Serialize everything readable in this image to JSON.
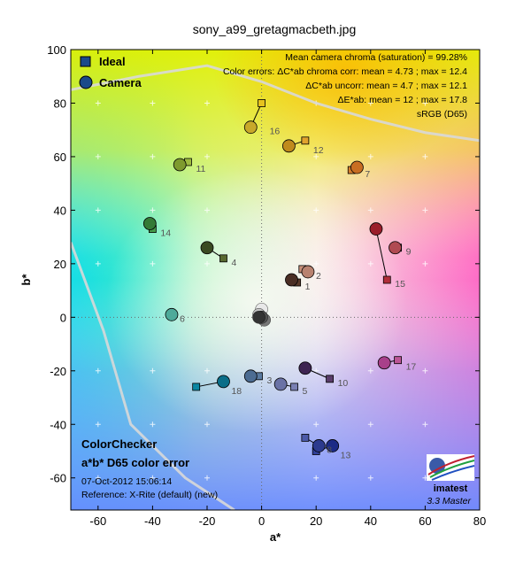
{
  "chart_data": {
    "type": "scatter",
    "title": "sony_a99_gretagmacbeth.jpg",
    "xlabel": "a*",
    "ylabel": "b*",
    "xlim": [
      -70,
      80
    ],
    "ylim": [
      -72,
      100
    ],
    "xticks": [
      -60,
      -40,
      -20,
      0,
      20,
      40,
      60,
      80
    ],
    "yticks": [
      -60,
      -40,
      -20,
      0,
      20,
      40,
      60,
      80,
      100
    ],
    "grid": "dotted center axes with cross markers",
    "legend": {
      "position": "top-left",
      "entries": [
        {
          "label": "Ideal",
          "marker": "square"
        },
        {
          "label": "Camera",
          "marker": "circle"
        }
      ]
    },
    "stats_lines": [
      "Mean camera chroma (saturation) = 99.28%",
      "Color errors: ΔC*ab chroma corr:  mean = 4.73 ;  max = 12.4",
      "ΔC*ab uncorr:  mean = 4.7 ;  max = 12.1",
      "ΔE*ab:  mean = 12 ;  max = 17.8",
      "sRGB (D65)"
    ],
    "info_title_lines": [
      "ColorChecker",
      "a*b* D65 color error"
    ],
    "info_lines": [
      "07-Oct-2012 15:06:14",
      "Reference: X-Rite (default) (new)"
    ],
    "logo_text": "imatest",
    "version_text": "3.3  Master",
    "gamut_boundary": [
      [
        -70,
        85
      ],
      [
        -45,
        90
      ],
      [
        -20,
        94
      ],
      [
        0,
        88
      ],
      [
        20,
        80
      ],
      [
        40,
        74
      ],
      [
        60,
        69
      ],
      [
        80,
        66
      ]
    ],
    "gamut_boundary_lower": [
      [
        -70,
        28
      ],
      [
        -58,
        -5
      ],
      [
        -48,
        -40
      ],
      [
        -28,
        -60
      ],
      [
        -10,
        -72
      ]
    ],
    "series": [
      {
        "name": "Ideal",
        "points": [
          {
            "patch": "1",
            "x": 13,
            "y": 13,
            "color": "#5a3a2a"
          },
          {
            "patch": "2",
            "x": 15,
            "y": 18,
            "color": "#c8907a"
          },
          {
            "patch": "3",
            "x": -1,
            "y": -22,
            "color": "#5a7aa0"
          },
          {
            "patch": "4",
            "x": -14,
            "y": 22,
            "color": "#586a30"
          },
          {
            "patch": "5",
            "x": 12,
            "y": -26,
            "color": "#7a80b4"
          },
          {
            "patch": "6",
            "x": -33,
            "y": 1,
            "color": "#5ebcab"
          },
          {
            "patch": "7",
            "x": 33,
            "y": 55,
            "color": "#d67e2c"
          },
          {
            "patch": "8",
            "x": 16,
            "y": -45,
            "color": "#4c5aa8"
          },
          {
            "patch": "9",
            "x": 50,
            "y": 26,
            "color": "#c05a62"
          },
          {
            "patch": "10",
            "x": 25,
            "y": -23,
            "color": "#5a3c6a"
          },
          {
            "patch": "11",
            "x": -27,
            "y": 58,
            "color": "#9ebc40"
          },
          {
            "patch": "12",
            "x": 16,
            "y": 66,
            "color": "#e0a22e"
          },
          {
            "patch": "13",
            "x": 20,
            "y": -50,
            "color": "#30409a"
          },
          {
            "patch": "14",
            "x": -40,
            "y": 33,
            "color": "#449a48"
          },
          {
            "patch": "15",
            "x": 46,
            "y": 14,
            "color": "#b02e3a"
          },
          {
            "patch": "16",
            "x": 0,
            "y": 80,
            "color": "#e6c21e"
          },
          {
            "patch": "17",
            "x": 50,
            "y": -16,
            "color": "#bc5596"
          },
          {
            "patch": "18",
            "x": -24,
            "y": -26,
            "color": "#0a86a2"
          }
        ]
      },
      {
        "name": "Camera",
        "points": [
          {
            "patch": "1",
            "x": 11,
            "y": 14,
            "color": "#4a2e24"
          },
          {
            "patch": "2",
            "x": 17,
            "y": 17,
            "color": "#b88270"
          },
          {
            "patch": "3",
            "x": -4,
            "y": -22,
            "color": "#4c6c92"
          },
          {
            "patch": "4",
            "x": -20,
            "y": 26,
            "color": "#3a4a22"
          },
          {
            "patch": "5",
            "x": 7,
            "y": -25,
            "color": "#6a72a6"
          },
          {
            "patch": "6",
            "x": -33,
            "y": 1,
            "color": "#4eaa9a"
          },
          {
            "patch": "7",
            "x": 35,
            "y": 56,
            "color": "#c86e22"
          },
          {
            "patch": "8",
            "x": 21,
            "y": -48,
            "color": "#2c3a8e"
          },
          {
            "patch": "9",
            "x": 49,
            "y": 26,
            "color": "#b04a52"
          },
          {
            "patch": "10",
            "x": 16,
            "y": -19,
            "color": "#3e2452"
          },
          {
            "patch": "11",
            "x": -30,
            "y": 57,
            "color": "#7e9a2e"
          },
          {
            "patch": "12",
            "x": 10,
            "y": 64,
            "color": "#c08a1c"
          },
          {
            "patch": "13",
            "x": 26,
            "y": -48,
            "color": "#1c2a86"
          },
          {
            "patch": "14",
            "x": -41,
            "y": 35,
            "color": "#347a36"
          },
          {
            "patch": "15",
            "x": 42,
            "y": 33,
            "color": "#9a1e2a"
          },
          {
            "patch": "16",
            "x": -4,
            "y": 71,
            "color": "#c8a82a"
          },
          {
            "patch": "17",
            "x": 45,
            "y": -17,
            "color": "#a8408a"
          },
          {
            "patch": "18",
            "x": -14,
            "y": -24,
            "color": "#0a6e88"
          }
        ]
      },
      {
        "name": "Neutrals",
        "points": [
          {
            "patch": "19",
            "x": 0,
            "y": 3,
            "color": "#e8e8e8"
          },
          {
            "patch": "20",
            "x": -1,
            "y": 1,
            "color": "#c4c4c4"
          },
          {
            "patch": "21",
            "x": 0,
            "y": 0,
            "color": "#9c9c9c"
          },
          {
            "patch": "22",
            "x": 1,
            "y": -1,
            "color": "#767676"
          },
          {
            "patch": "23",
            "x": 0,
            "y": 0,
            "color": "#525252"
          },
          {
            "patch": "24",
            "x": -1,
            "y": 0,
            "color": "#333333"
          }
        ]
      }
    ],
    "point_labels": [
      {
        "patch": "1",
        "text": "1"
      },
      {
        "patch": "2",
        "text": "2"
      },
      {
        "patch": "3",
        "text": "3"
      },
      {
        "patch": "4",
        "text": "4"
      },
      {
        "patch": "5",
        "text": "5"
      },
      {
        "patch": "6",
        "text": "6"
      },
      {
        "patch": "7",
        "text": "7"
      },
      {
        "patch": "8",
        "text": "8"
      },
      {
        "patch": "9",
        "text": "9"
      },
      {
        "patch": "10",
        "text": "10"
      },
      {
        "patch": "11",
        "text": "11"
      },
      {
        "patch": "12",
        "text": "12"
      },
      {
        "patch": "13",
        "text": "13"
      },
      {
        "patch": "14",
        "text": "14"
      },
      {
        "patch": "15",
        "text": "15"
      },
      {
        "patch": "16",
        "text": "16"
      },
      {
        "patch": "17",
        "text": "17"
      },
      {
        "patch": "18",
        "text": "18"
      }
    ]
  }
}
